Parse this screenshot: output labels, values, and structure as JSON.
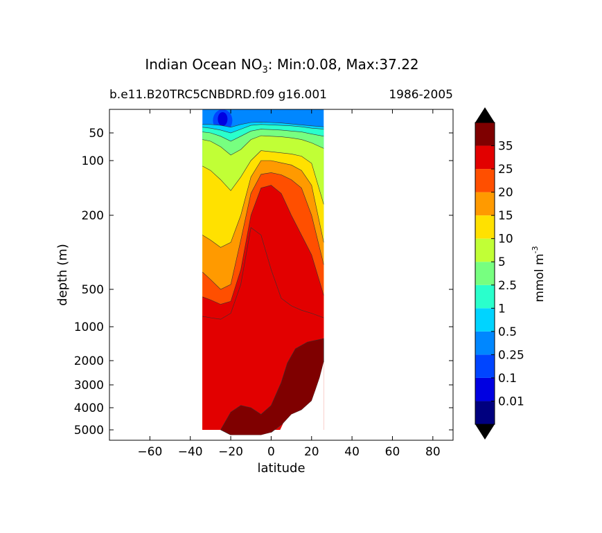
{
  "chart_data": {
    "type": "contour",
    "title_main": "Indian Ocean NO",
    "title_sub3": "3",
    "title_rest": ": Min:0.08, Max:37.22",
    "subtitle_left": "b.e11.B20TRC5CNBDRD.f09 g16.001",
    "subtitle_right": "1986-2005",
    "xlabel": "latitude",
    "ylabel": "depth (m)",
    "xlim": [
      -80,
      90
    ],
    "xticks": [
      "-60",
      "-40",
      "-20",
      "0",
      "20",
      "40",
      "60",
      "80"
    ],
    "xtick_values": [
      -60,
      -40,
      -20,
      0,
      20,
      40,
      60,
      80
    ],
    "yticks": [
      "50",
      "100",
      "200",
      "500",
      "1000",
      "2000",
      "3000",
      "4000",
      "5000"
    ],
    "ytick_values": [
      50,
      100,
      200,
      500,
      1000,
      2000,
      3000,
      4000,
      5000
    ],
    "data_lat_range": [
      -34,
      26
    ],
    "colorbar": {
      "label": "mmol m",
      "label_sup": "-3",
      "levels": [
        "0.01",
        "0.1",
        "0.25",
        "0.5",
        "1",
        "2.5",
        "5",
        "10",
        "15",
        "20",
        "25",
        "35"
      ],
      "colors": [
        "#00007f",
        "#0000e1",
        "#0045ff",
        "#0087ff",
        "#00d4ff",
        "#2affcc",
        "#77ff80",
        "#c1ff36",
        "#ffe100",
        "#ff9a00",
        "#ff4f00",
        "#e20000",
        "#7f0000"
      ],
      "extend": "both"
    },
    "contour_profiles": {
      "lat": [
        -34,
        -30,
        -25,
        -20,
        -15,
        -10,
        -5,
        0,
        5,
        10,
        15,
        20,
        26
      ],
      "depth_by_level_m": [
        {
          "value": 0.5,
          "depth": [
            32,
            32,
            34,
            38,
            32,
            28,
            27,
            28,
            29,
            31,
            33,
            35,
            37
          ]
        },
        {
          "value": 1,
          "depth": [
            38,
            40,
            44,
            50,
            42,
            34,
            32,
            33,
            34,
            35,
            37,
            40,
            42
          ]
        },
        {
          "value": 2.5,
          "depth": [
            48,
            50,
            56,
            65,
            56,
            46,
            42,
            43,
            44,
            46,
            48,
            52,
            56
          ]
        },
        {
          "value": 5,
          "depth": [
            62,
            65,
            75,
            90,
            80,
            62,
            55,
            56,
            57,
            59,
            62,
            68,
            78
          ]
        },
        {
          "value": 10,
          "depth": [
            110,
            118,
            135,
            155,
            130,
            100,
            82,
            84,
            86,
            88,
            92,
            105,
            180
          ]
        },
        {
          "value": 15,
          "depth": [
            280,
            300,
            330,
            310,
            200,
            130,
            100,
            100,
            104,
            108,
            118,
            145,
            310
          ]
        },
        {
          "value": 20,
          "depth": [
            430,
            460,
            500,
            480,
            300,
            160,
            125,
            122,
            126,
            135,
            150,
            200,
            400
          ]
        },
        {
          "value": 25,
          "depth": [
            600,
            640,
            700,
            660,
            420,
            200,
            150,
            145,
            160,
            200,
            280,
            360,
            580
          ]
        },
        {
          "value": 35,
          "depth": [
            860,
            880,
            900,
            820,
            480,
            250,
            280,
            420,
            620,
            720,
            780,
            820,
            880
          ]
        }
      ]
    }
  }
}
